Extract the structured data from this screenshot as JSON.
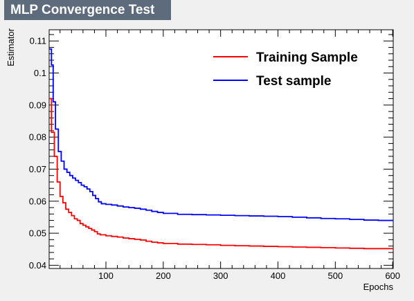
{
  "chart_data": {
    "type": "line",
    "title": "MLP Convergence Test",
    "xlabel": "Epochs",
    "ylabel": "Estimator",
    "xlim": [
      1,
      601
    ],
    "ylim": [
      0.039,
      0.1135
    ],
    "x_ticks": [
      100,
      200,
      300,
      400,
      500,
      600
    ],
    "y_ticks": [
      0.04,
      0.05,
      0.06,
      0.07,
      0.08,
      0.09,
      0.1,
      0.11
    ],
    "legend_position": "top-right",
    "series": [
      {
        "name": "Training Sample",
        "color": "#ff0000",
        "points": [
          [
            1,
            0.092
          ],
          [
            5,
            0.0815
          ],
          [
            10,
            0.074
          ],
          [
            15,
            0.066
          ],
          [
            20,
            0.0615
          ],
          [
            25,
            0.0595
          ],
          [
            30,
            0.0575
          ],
          [
            35,
            0.0565
          ],
          [
            40,
            0.0555
          ],
          [
            45,
            0.0545
          ],
          [
            50,
            0.054
          ],
          [
            55,
            0.053
          ],
          [
            60,
            0.0525
          ],
          [
            65,
            0.052
          ],
          [
            70,
            0.0515
          ],
          [
            75,
            0.051
          ],
          [
            80,
            0.0505
          ],
          [
            85,
            0.0498
          ],
          [
            90,
            0.0495
          ],
          [
            100,
            0.0492
          ],
          [
            110,
            0.049
          ],
          [
            120,
            0.0488
          ],
          [
            130,
            0.0485
          ],
          [
            140,
            0.0483
          ],
          [
            150,
            0.0481
          ],
          [
            160,
            0.0479
          ],
          [
            170,
            0.0475
          ],
          [
            180,
            0.0472
          ],
          [
            190,
            0.047
          ],
          [
            200,
            0.0468
          ],
          [
            225,
            0.0466
          ],
          [
            250,
            0.0465
          ],
          [
            275,
            0.0464
          ],
          [
            300,
            0.0462
          ],
          [
            325,
            0.0461
          ],
          [
            350,
            0.046
          ],
          [
            375,
            0.0459
          ],
          [
            400,
            0.0458
          ],
          [
            425,
            0.0457
          ],
          [
            450,
            0.0456
          ],
          [
            475,
            0.0455
          ],
          [
            500,
            0.0454
          ],
          [
            525,
            0.0453
          ],
          [
            550,
            0.0452
          ],
          [
            575,
            0.0452
          ],
          [
            601,
            0.0452
          ]
        ]
      },
      {
        "name": "Test sample",
        "color": "#0000ff",
        "points": [
          [
            1,
            0.1075
          ],
          [
            5,
            0.1025
          ],
          [
            8,
            0.091
          ],
          [
            12,
            0.0825
          ],
          [
            17,
            0.0755
          ],
          [
            22,
            0.0725
          ],
          [
            27,
            0.07
          ],
          [
            32,
            0.069
          ],
          [
            37,
            0.068
          ],
          [
            42,
            0.0672
          ],
          [
            47,
            0.0665
          ],
          [
            52,
            0.0658
          ],
          [
            57,
            0.065
          ],
          [
            62,
            0.0645
          ],
          [
            67,
            0.0638
          ],
          [
            72,
            0.063
          ],
          [
            77,
            0.0618
          ],
          [
            82,
            0.0608
          ],
          [
            87,
            0.0598
          ],
          [
            92,
            0.0592
          ],
          [
            100,
            0.059
          ],
          [
            110,
            0.0588
          ],
          [
            120,
            0.0585
          ],
          [
            130,
            0.0582
          ],
          [
            140,
            0.058
          ],
          [
            150,
            0.0578
          ],
          [
            160,
            0.0575
          ],
          [
            170,
            0.0572
          ],
          [
            180,
            0.0568
          ],
          [
            190,
            0.0565
          ],
          [
            200,
            0.0562
          ],
          [
            225,
            0.0559
          ],
          [
            250,
            0.0558
          ],
          [
            275,
            0.0557
          ],
          [
            300,
            0.0556
          ],
          [
            325,
            0.0555
          ],
          [
            350,
            0.0554
          ],
          [
            375,
            0.0553
          ],
          [
            400,
            0.0552
          ],
          [
            425,
            0.055
          ],
          [
            450,
            0.0548
          ],
          [
            475,
            0.0546
          ],
          [
            500,
            0.0545
          ],
          [
            525,
            0.0543
          ],
          [
            550,
            0.0541
          ],
          [
            575,
            0.054
          ],
          [
            601,
            0.054
          ]
        ]
      }
    ]
  }
}
